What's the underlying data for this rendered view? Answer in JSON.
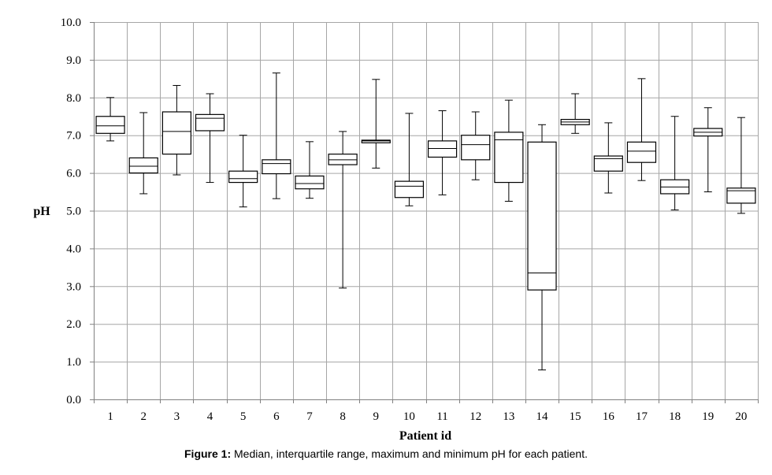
{
  "chart_data": {
    "type": "boxplot",
    "xlabel": "Patient id",
    "ylabel": "pH",
    "ylim": [
      0,
      10
    ],
    "y_ticks": [
      "0.0",
      "1.0",
      "2.0",
      "3.0",
      "4.0",
      "5.0",
      "6.0",
      "7.0",
      "8.0",
      "9.0",
      "10.0"
    ],
    "grid": true,
    "categories": [
      "1",
      "2",
      "3",
      "4",
      "5",
      "6",
      "7",
      "8",
      "9",
      "10",
      "11",
      "12",
      "13",
      "14",
      "15",
      "16",
      "17",
      "18",
      "19",
      "20"
    ],
    "series": [
      {
        "min": 6.85,
        "q1": 7.05,
        "median": 7.25,
        "q3": 7.5,
        "max": 8.0
      },
      {
        "min": 5.45,
        "q1": 6.0,
        "median": 6.18,
        "q3": 6.4,
        "max": 7.6
      },
      {
        "min": 5.95,
        "q1": 6.5,
        "median": 7.1,
        "q3": 7.62,
        "max": 8.32
      },
      {
        "min": 5.75,
        "q1": 7.12,
        "median": 7.45,
        "q3": 7.55,
        "max": 8.1
      },
      {
        "min": 5.1,
        "q1": 5.75,
        "median": 5.85,
        "q3": 6.05,
        "max": 7.0
      },
      {
        "min": 5.32,
        "q1": 5.98,
        "median": 6.25,
        "q3": 6.35,
        "max": 8.65
      },
      {
        "min": 5.33,
        "q1": 5.58,
        "median": 5.72,
        "q3": 5.92,
        "max": 6.83
      },
      {
        "min": 2.95,
        "q1": 6.22,
        "median": 6.35,
        "q3": 6.5,
        "max": 7.1
      },
      {
        "min": 6.13,
        "q1": 6.8,
        "median": 6.85,
        "q3": 6.87,
        "max": 8.48
      },
      {
        "min": 5.13,
        "q1": 5.35,
        "median": 5.65,
        "q3": 5.78,
        "max": 7.58
      },
      {
        "min": 5.42,
        "q1": 6.42,
        "median": 6.65,
        "q3": 6.85,
        "max": 7.65
      },
      {
        "min": 5.82,
        "q1": 6.35,
        "median": 6.75,
        "q3": 7.0,
        "max": 7.62
      },
      {
        "min": 5.25,
        "q1": 5.75,
        "median": 6.88,
        "q3": 7.08,
        "max": 7.93
      },
      {
        "min": 0.78,
        "q1": 2.9,
        "median": 3.35,
        "q3": 6.82,
        "max": 7.28
      },
      {
        "min": 7.05,
        "q1": 7.28,
        "median": 7.35,
        "q3": 7.42,
        "max": 8.1
      },
      {
        "min": 5.47,
        "q1": 6.05,
        "median": 6.38,
        "q3": 6.45,
        "max": 7.33
      },
      {
        "min": 5.8,
        "q1": 6.28,
        "median": 6.58,
        "q3": 6.82,
        "max": 8.5
      },
      {
        "min": 5.02,
        "q1": 5.45,
        "median": 5.63,
        "q3": 5.82,
        "max": 7.5
      },
      {
        "min": 5.5,
        "q1": 6.98,
        "median": 7.08,
        "q3": 7.18,
        "max": 7.73
      },
      {
        "min": 4.93,
        "q1": 5.2,
        "median": 5.53,
        "q3": 5.6,
        "max": 7.47
      }
    ],
    "colors": {
      "box_fill": "#ffffff",
      "stroke": "#000000",
      "grid": "#a6a6a6",
      "axis": "#808080"
    }
  },
  "caption": {
    "label": "Figure 1:",
    "text": " Median, interquartile range, maximum and minimum pH for each patient."
  }
}
